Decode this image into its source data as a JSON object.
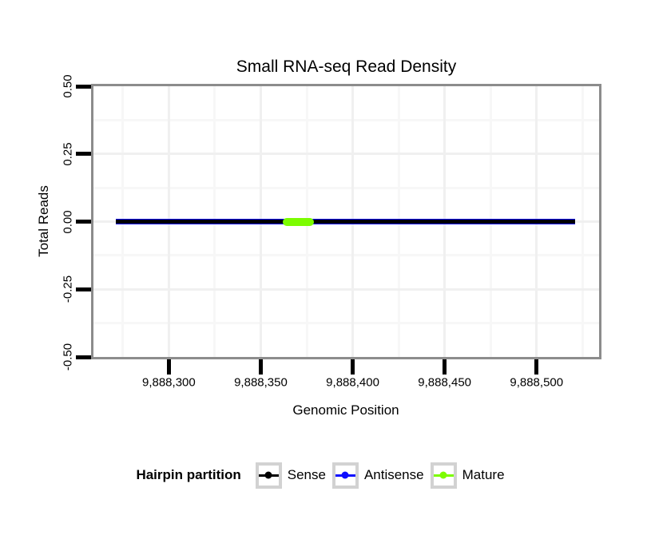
{
  "title": "Small RNA-seq Read Density",
  "chart_data": {
    "type": "line",
    "title": "Small RNA-seq Read Density",
    "xlabel": "Genomic Position",
    "ylabel": "Total Reads",
    "xlim": [
      9888259,
      9888534
    ],
    "ylim": [
      -0.5,
      0.5
    ],
    "grid": true,
    "x_ticks": [
      {
        "value": 9888300,
        "label": "9,888,300"
      },
      {
        "value": 9888350,
        "label": "9,888,350"
      },
      {
        "value": 9888400,
        "label": "9,888,400"
      },
      {
        "value": 9888450,
        "label": "9,888,450"
      },
      {
        "value": 9888500,
        "label": "9,888,500"
      }
    ],
    "y_ticks": [
      {
        "value": 0.5,
        "label": "0.50"
      },
      {
        "value": 0.25,
        "label": "0.25"
      },
      {
        "value": 0.0,
        "label": "0.00"
      },
      {
        "value": -0.25,
        "label": "-0.25"
      },
      {
        "value": -0.5,
        "label": "-0.50"
      }
    ],
    "x_minor_ticks": [
      9888275,
      9888325,
      9888375,
      9888425,
      9888475,
      9888525
    ],
    "y_minor_ticks": [
      0.375,
      0.125,
      -0.125,
      -0.375
    ],
    "series": [
      {
        "name": "Sense",
        "color": "#000000",
        "y": 0,
        "x_start": 9888271,
        "x_end": 9888521,
        "thickness": 5,
        "rounded": false,
        "z": 3
      },
      {
        "name": "Antisense",
        "color": "#0d0dff",
        "y": 0,
        "x_start": 9888271,
        "x_end": 9888521,
        "thickness": 7,
        "rounded": false,
        "z": 2
      },
      {
        "name": "Mature",
        "color": "#7cfc00",
        "y": 0,
        "x_start": 9888362,
        "x_end": 9888379,
        "thickness": 10,
        "rounded": true,
        "z": 4
      }
    ],
    "legend_position": "bottom",
    "legend_title": "Hairpin partition"
  },
  "legend": {
    "title": "Hairpin partition",
    "items": [
      {
        "label": "Sense",
        "color": "#000000"
      },
      {
        "label": "Antisense",
        "color": "#0d0dff"
      },
      {
        "label": "Mature",
        "color": "#7cfc00"
      }
    ]
  }
}
